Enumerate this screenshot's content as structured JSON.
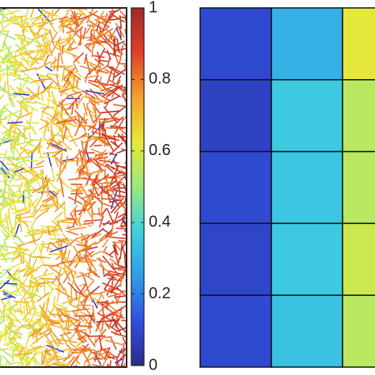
{
  "chart_data": {
    "type": "heatmap",
    "values": [
      [
        0.1,
        0.3,
        0.62
      ],
      [
        0.08,
        0.36,
        0.55
      ],
      [
        0.1,
        0.35,
        0.55
      ],
      [
        0.09,
        0.36,
        0.58
      ],
      [
        0.1,
        0.34,
        0.55
      ]
    ],
    "colormap": [
      "#2b2b8c",
      "#3050e0",
      "#2f9de8",
      "#3fd0e0",
      "#9be87a",
      "#e8e838",
      "#f5a030",
      "#e04028",
      "#a02828"
    ],
    "clim": [
      0,
      1
    ],
    "cticks": [
      0,
      0.2,
      0.4,
      0.6,
      0.8,
      1
    ]
  }
}
